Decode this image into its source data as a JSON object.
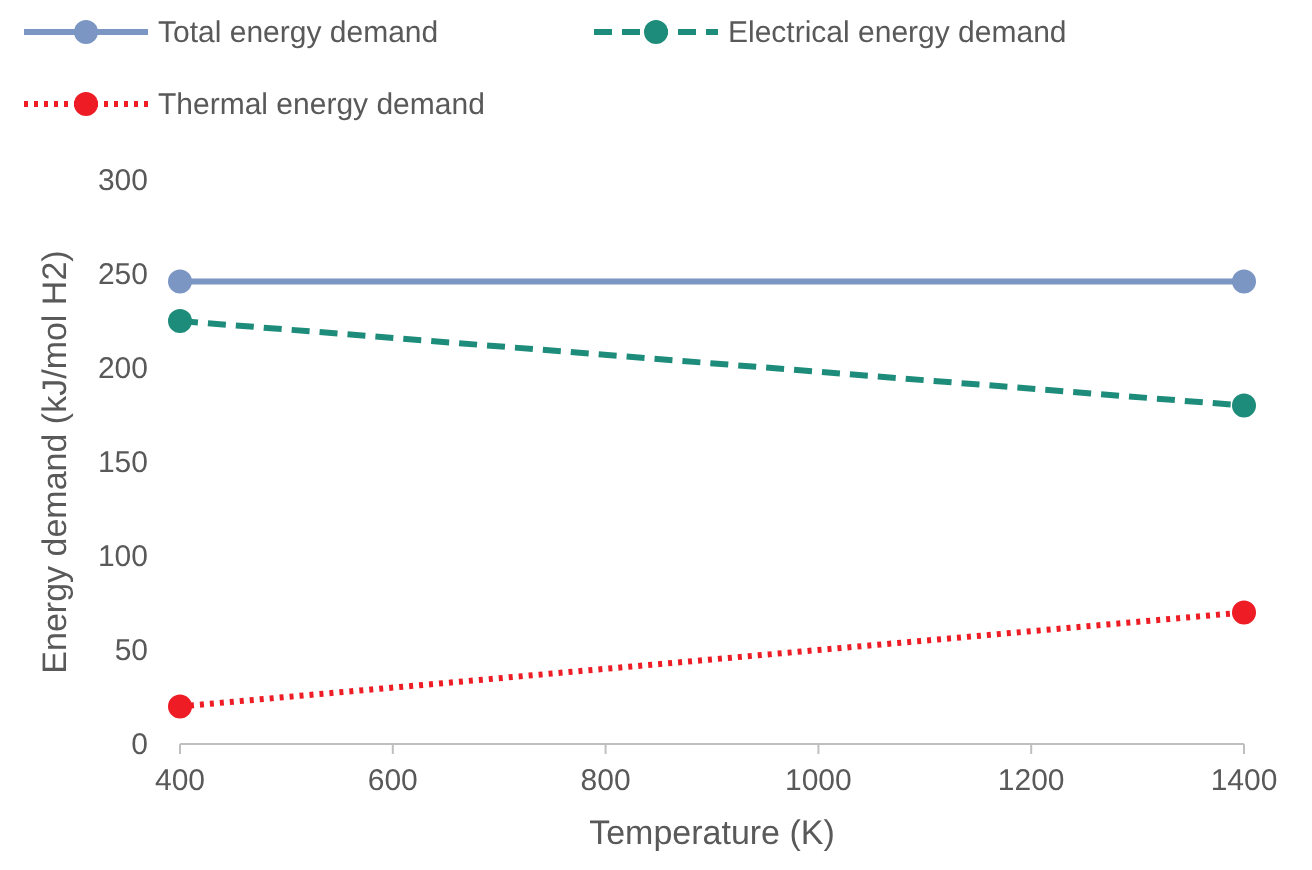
{
  "chart_data": {
    "type": "line",
    "xlabel": "Temperature (K)",
    "ylabel": "Energy demand (kJ/mol H2)",
    "x": [
      400,
      1400
    ],
    "series": [
      {
        "name": "Total energy demand",
        "color": "#7b96c2",
        "values": [
          246,
          246
        ],
        "line_style": "solid"
      },
      {
        "name": "Electrical energy demand",
        "color": "#1e8c7a",
        "values": [
          225,
          180
        ],
        "line_style": "dashed"
      },
      {
        "name": "Thermal energy demand",
        "color": "#ee1c25",
        "values": [
          20,
          70
        ],
        "line_style": "dotted"
      }
    ],
    "xlim": [
      400,
      1400
    ],
    "xticks": [
      400,
      600,
      800,
      1000,
      1200,
      1400
    ],
    "ylim": [
      0,
      300
    ],
    "yticks": [
      0,
      50,
      100,
      150,
      200,
      250,
      300
    ],
    "grid": false,
    "legend": "top",
    "marker": "circle"
  }
}
